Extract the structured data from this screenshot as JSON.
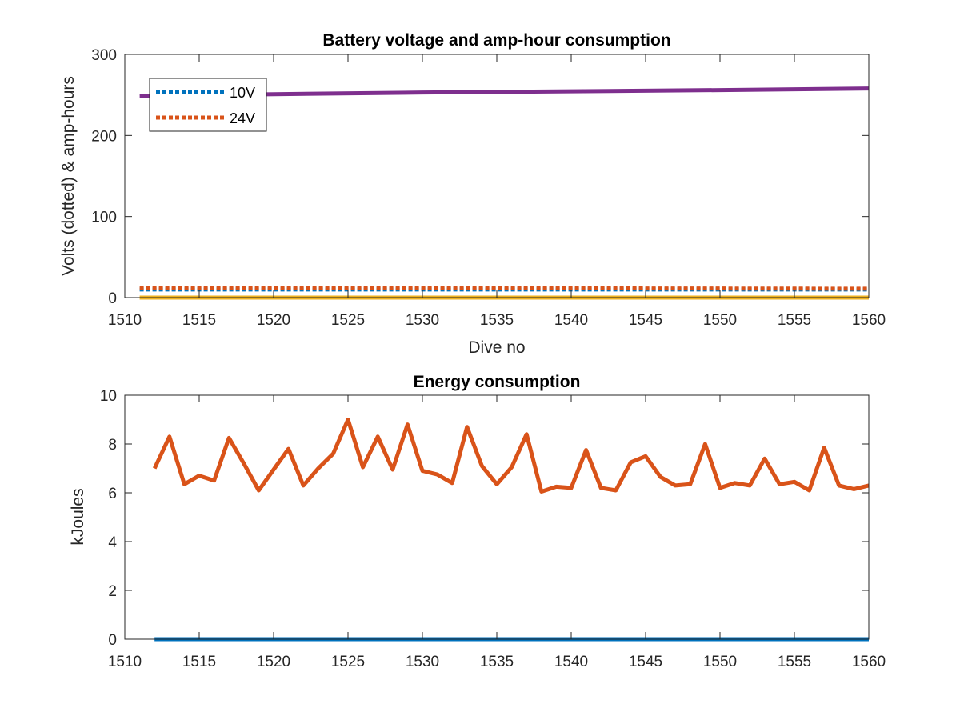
{
  "chart_data": [
    {
      "type": "line",
      "title": "Battery voltage and amp-hour consumption",
      "xlabel": "Dive no",
      "ylabel": "Volts (dotted) & amp-hours",
      "xlim": [
        1510,
        1560
      ],
      "ylim": [
        0,
        300
      ],
      "xticks": [
        "1510",
        "1515",
        "1520",
        "1525",
        "1530",
        "1535",
        "1540",
        "1545",
        "1550",
        "1555",
        "1560"
      ],
      "yticks": [
        "0",
        "100",
        "200",
        "300"
      ],
      "grid": false,
      "legend_position": "top-left",
      "series": [
        {
          "name": "10V",
          "style": "dotted",
          "color": "#0072BD",
          "x": [
            1511,
            1560
          ],
          "y": [
            10,
            10
          ]
        },
        {
          "name": "24V",
          "style": "dotted",
          "color": "#D95319",
          "x": [
            1511,
            1560
          ],
          "y": [
            12,
            11
          ]
        },
        {
          "style": "solid",
          "color": "#EDB120",
          "x": [
            1511,
            1560
          ],
          "y": [
            0,
            0
          ]
        },
        {
          "style": "solid",
          "color": "#7E2F8E",
          "x": [
            1511,
            1520,
            1530,
            1540,
            1550,
            1560
          ],
          "y": [
            249,
            251,
            253,
            254.5,
            256,
            258
          ]
        }
      ]
    },
    {
      "type": "line",
      "title": "Energy consumption",
      "xlabel": "",
      "ylabel": "kJoules",
      "xlim": [
        1510,
        1560
      ],
      "ylim": [
        0,
        10
      ],
      "xticks": [
        "1510",
        "1515",
        "1520",
        "1525",
        "1530",
        "1535",
        "1540",
        "1545",
        "1550",
        "1555",
        "1560"
      ],
      "yticks": [
        "0",
        "2",
        "4",
        "6",
        "8",
        "10"
      ],
      "grid": false,
      "series": [
        {
          "style": "solid",
          "color": "#0072BD",
          "x": [
            1512,
            1560
          ],
          "y": [
            0,
            0
          ]
        },
        {
          "style": "solid",
          "color": "#D95319",
          "x": [
            1512,
            1513,
            1514,
            1515,
            1516,
            1517,
            1518,
            1519,
            1520,
            1521,
            1522,
            1523,
            1524,
            1525,
            1526,
            1527,
            1528,
            1529,
            1530,
            1531,
            1532,
            1533,
            1534,
            1535,
            1536,
            1537,
            1538,
            1539,
            1540,
            1541,
            1542,
            1543,
            1544,
            1545,
            1546,
            1547,
            1548,
            1549,
            1550,
            1551,
            1552,
            1553,
            1554,
            1555,
            1556,
            1557,
            1558,
            1559,
            1560
          ],
          "y": [
            7.0,
            8.3,
            6.35,
            6.7,
            6.5,
            8.25,
            7.2,
            6.1,
            6.95,
            7.8,
            6.3,
            7.0,
            7.6,
            9.0,
            7.05,
            8.3,
            6.95,
            8.8,
            6.9,
            6.75,
            6.4,
            8.7,
            7.1,
            6.35,
            7.05,
            8.4,
            6.05,
            6.25,
            6.2,
            7.75,
            6.2,
            6.1,
            7.25,
            7.5,
            6.65,
            6.3,
            6.35,
            8.0,
            6.2,
            6.4,
            6.3,
            7.4,
            6.35,
            6.45,
            6.1,
            7.85,
            6.3,
            6.15,
            6.3
          ]
        }
      ]
    }
  ]
}
